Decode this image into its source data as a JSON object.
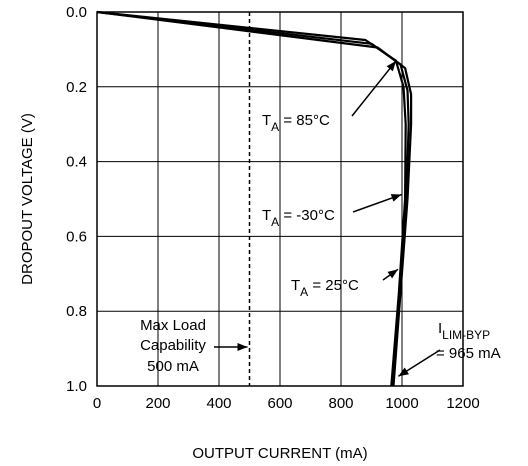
{
  "chart_data": {
    "type": "line",
    "xlabel": "OUTPUT CURRENT (mA)",
    "ylabel": "DROPOUT VOLTAGE (V)",
    "xlim": [
      0,
      1200
    ],
    "ylim": [
      1.0,
      0.0
    ],
    "y_inverted": true,
    "grid": true,
    "x_ticks": [
      "0",
      "200",
      "400",
      "600",
      "800",
      "1000",
      "1200"
    ],
    "y_ticks": [
      "0.0",
      "0.2",
      "0.4",
      "0.6",
      "0.8",
      "1.0"
    ],
    "x_tick_values": [
      0,
      200,
      400,
      600,
      800,
      1000,
      1200
    ],
    "y_tick_values": [
      0.0,
      0.2,
      0.4,
      0.6,
      0.8,
      1.0
    ],
    "series": [
      {
        "name": "T_A = 85°C",
        "x": [
          0,
          880,
          980,
          1005,
          1012,
          1010,
          990,
          965
        ],
        "y": [
          0.0,
          0.075,
          0.13,
          0.2,
          0.3,
          0.5,
          0.75,
          1.0
        ]
      },
      {
        "name": "T_A = -30°C",
        "x": [
          0,
          900,
          995,
          1018,
          1022,
          1014,
          992,
          968
        ],
        "y": [
          0.0,
          0.085,
          0.14,
          0.21,
          0.3,
          0.5,
          0.75,
          1.0
        ]
      },
      {
        "name": "T_A = 25°C",
        "x": [
          0,
          920,
          1010,
          1030,
          1030,
          1018,
          995,
          972
        ],
        "y": [
          0.0,
          0.095,
          0.15,
          0.22,
          0.3,
          0.5,
          0.75,
          1.0
        ]
      }
    ],
    "reference_line": {
      "x": 500,
      "style": "dashed"
    },
    "annotations": [
      {
        "label_main": "T",
        "label_sub": "A",
        "label_rest": " = 85°C",
        "arrow_to": [
          1000,
          0.12
        ]
      },
      {
        "label_main": "T",
        "label_sub": "A",
        "label_rest": " = -30°C",
        "arrow_to": [
          1005,
          0.48
        ]
      },
      {
        "label_main": "T",
        "label_sub": "A",
        "label_rest": " = 25°C",
        "arrow_to": [
          990,
          0.68
        ]
      },
      {
        "lines": [
          "Max Load",
          "Capability",
          "500 mA"
        ],
        "arrow_to": [
          500,
          0.895
        ]
      },
      {
        "label_main": "I",
        "label_sub": "LIM-BYP",
        "line2": "= 965 mA",
        "arrow_to": [
          975,
          0.99
        ]
      }
    ]
  }
}
